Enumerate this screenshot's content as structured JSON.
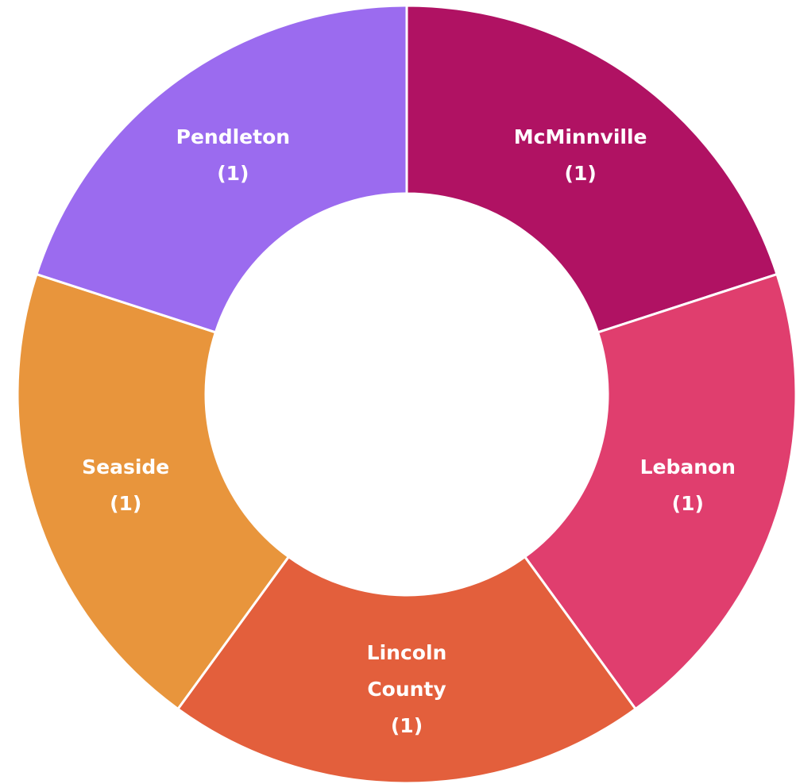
{
  "chart_data": {
    "type": "pie",
    "categories": [
      "McMinnville",
      "Lebanon",
      "Lincoln County",
      "Seaside",
      "Pendleton"
    ],
    "values": [
      1,
      1,
      1,
      1,
      1
    ],
    "value_labels": [
      "(1)",
      "(1)",
      "(1)",
      "(1)",
      "(1)"
    ],
    "colors": [
      "#b01263",
      "#e03e6e",
      "#e35f3c",
      "#e8953c",
      "#9b6bef"
    ]
  }
}
